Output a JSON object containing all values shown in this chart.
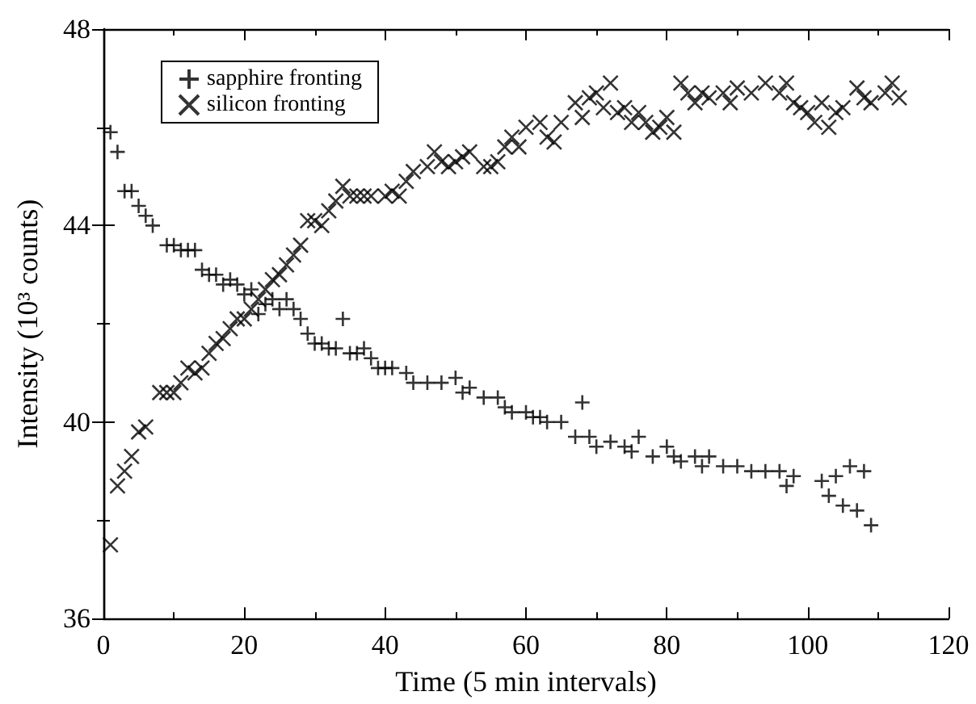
{
  "chart_data": {
    "type": "scatter",
    "xlabel": "Time (5 min intervals)",
    "ylabel": "Intensity (10³ counts)",
    "xlim": [
      0,
      120
    ],
    "xticks": [
      0,
      20,
      40,
      60,
      80,
      100,
      120
    ],
    "ylim": [
      36,
      48
    ],
    "yticks": [
      36,
      40,
      44,
      48
    ],
    "grid": false,
    "legend": "top left",
    "series": [
      {
        "name": "sapphire fronting",
        "color": "#000000",
        "marker": "cross",
        "x": [
          1,
          2,
          3,
          4,
          5,
          6,
          7,
          9,
          10,
          11,
          12,
          13,
          14,
          15,
          16,
          17,
          18,
          19,
          20,
          21,
          22,
          23,
          24,
          25,
          26,
          27,
          28,
          29,
          30,
          31,
          32,
          33,
          34,
          35,
          36,
          37,
          38,
          39,
          40,
          41,
          43,
          44,
          46,
          48,
          50,
          51,
          52,
          54,
          56,
          57,
          58,
          60,
          61,
          62,
          63,
          65,
          67,
          68,
          69,
          70,
          72,
          74,
          75,
          76,
          78,
          80,
          81,
          82,
          84,
          85,
          86,
          88,
          90,
          92,
          94,
          96,
          97,
          98,
          102,
          103,
          104,
          105,
          106,
          107,
          108,
          109
        ],
        "values": [
          45.9,
          45.5,
          44.7,
          44.7,
          44.4,
          44.2,
          44.0,
          43.6,
          43.6,
          43.5,
          43.5,
          43.5,
          43.1,
          43.0,
          43.0,
          42.8,
          42.9,
          42.8,
          42.6,
          42.7,
          42.2,
          42.4,
          42.5,
          42.3,
          42.5,
          42.3,
          42.1,
          41.8,
          41.6,
          41.6,
          41.5,
          41.5,
          42.1,
          41.4,
          41.4,
          41.5,
          41.3,
          41.1,
          41.1,
          41.1,
          41.0,
          40.8,
          40.8,
          40.8,
          40.9,
          40.6,
          40.7,
          40.5,
          40.5,
          40.3,
          40.2,
          40.2,
          40.1,
          40.1,
          40.0,
          40.0,
          39.7,
          40.4,
          39.7,
          39.5,
          39.6,
          39.5,
          39.4,
          39.7,
          39.3,
          39.5,
          39.3,
          39.2,
          39.3,
          39.1,
          39.3,
          39.1,
          39.1,
          39.0,
          39.0,
          39.0,
          38.7,
          38.9,
          38.8,
          38.5,
          38.9,
          38.3,
          39.1,
          38.2,
          39.0,
          37.9
        ]
      },
      {
        "name": "silicon fronting",
        "color": "#000000",
        "marker": "x",
        "x": [
          1,
          2,
          3,
          4,
          5,
          6,
          8,
          9,
          10,
          11,
          12,
          13,
          14,
          15,
          16,
          17,
          18,
          19,
          20,
          21,
          22,
          23,
          24,
          25,
          26,
          27,
          28,
          29,
          30,
          31,
          32,
          33,
          34,
          35,
          36,
          37,
          38,
          40,
          41,
          42,
          43,
          44,
          46,
          47,
          48,
          49,
          50,
          51,
          52,
          54,
          55,
          56,
          57,
          58,
          59,
          60,
          62,
          63,
          64,
          65,
          67,
          68,
          69,
          70,
          71,
          72,
          73,
          74,
          75,
          76,
          77,
          78,
          79,
          80,
          81,
          82,
          83,
          84,
          85,
          86,
          88,
          89,
          90,
          92,
          94,
          96,
          97,
          98,
          99,
          100,
          101,
          102,
          103,
          104,
          105,
          107,
          108,
          109,
          111,
          112,
          113
        ],
        "values": [
          37.5,
          38.7,
          39.0,
          39.3,
          39.8,
          39.9,
          40.6,
          40.6,
          40.6,
          40.8,
          41.1,
          41.0,
          41.1,
          41.4,
          41.6,
          41.7,
          41.9,
          42.1,
          42.1,
          42.3,
          42.5,
          42.7,
          42.9,
          43.0,
          43.2,
          43.4,
          43.6,
          44.1,
          44.1,
          44.0,
          44.3,
          44.5,
          44.8,
          44.6,
          44.6,
          44.6,
          44.6,
          44.6,
          44.7,
          44.6,
          44.9,
          45.1,
          45.2,
          45.5,
          45.3,
          45.2,
          45.3,
          45.4,
          45.5,
          45.2,
          45.2,
          45.3,
          45.6,
          45.8,
          45.6,
          46.0,
          46.1,
          45.8,
          45.7,
          46.1,
          46.5,
          46.2,
          46.6,
          46.7,
          46.4,
          46.9,
          46.3,
          46.4,
          46.1,
          46.3,
          46.1,
          45.9,
          46.0,
          46.2,
          45.9,
          46.9,
          46.7,
          46.5,
          46.7,
          46.6,
          46.7,
          46.5,
          46.8,
          46.7,
          46.9,
          46.7,
          46.9,
          46.5,
          46.4,
          46.3,
          46.1,
          46.5,
          46.0,
          46.3,
          46.4,
          46.8,
          46.6,
          46.5,
          46.7,
          46.9,
          46.6
        ]
      }
    ]
  }
}
